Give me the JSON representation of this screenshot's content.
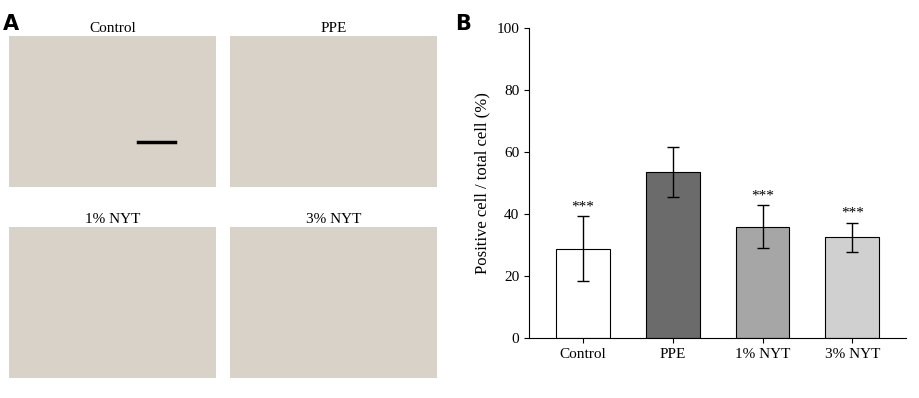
{
  "panels": {
    "A": {
      "label": "A",
      "images": [
        "Control",
        "PPE",
        "1% NYT",
        "3% NYT"
      ]
    },
    "B": {
      "label": "B"
    }
  },
  "chart_data": {
    "type": "bar",
    "y_label": "Positive cell / total cell (%)",
    "categories": [
      "Control",
      "PPE",
      "1% NYT",
      "3% NYT"
    ],
    "values": [
      28.8,
      53.5,
      36.0,
      32.5
    ],
    "errors": [
      10.5,
      8.0,
      7.0,
      4.8
    ],
    "significance": [
      "***",
      null,
      "***",
      "***"
    ],
    "colors": [
      "#ffffff",
      "#6b6b6b",
      "#a6a6a6",
      "#d0d0d0"
    ],
    "ylim": [
      0,
      100
    ],
    "yticks": [
      0,
      20,
      40,
      60,
      80,
      100
    ],
    "grid": false
  }
}
